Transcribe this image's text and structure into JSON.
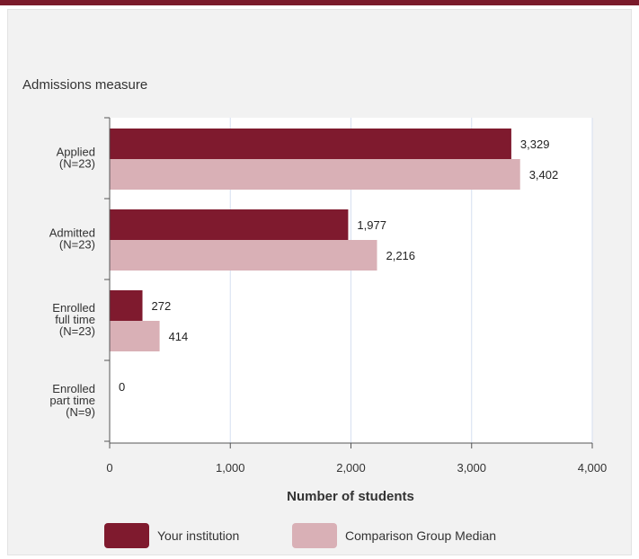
{
  "chart_data": {
    "type": "bar",
    "orientation": "horizontal",
    "ylabel": "Admissions measure",
    "xlabel": "Number of students",
    "xlim": [
      0,
      4000
    ],
    "xticks": [
      0,
      1000,
      2000,
      3000,
      4000
    ],
    "xtick_labels": [
      "0",
      "1,000",
      "2,000",
      "3,000",
      "4,000"
    ],
    "grid": true,
    "legend_position": "bottom",
    "categories": [
      [
        "Applied",
        "(N=23)"
      ],
      [
        "Admitted",
        "(N=23)"
      ],
      [
        "Enrolled",
        "full time",
        "(N=23)"
      ],
      [
        "Enrolled",
        "part time",
        "(N=9)"
      ]
    ],
    "series": [
      {
        "name": "Your institution",
        "color": "#7f1a2e",
        "values": [
          3329,
          1977,
          272,
          0
        ],
        "labels": [
          "3,329",
          "1,977",
          "272",
          "0"
        ]
      },
      {
        "name": "Comparison Group Median",
        "color": "#d9b0b6",
        "values": [
          3402,
          2216,
          414,
          null
        ],
        "labels": [
          "3,402",
          "2,216",
          "414",
          ""
        ]
      }
    ]
  },
  "colors": {
    "topbar": "#7a1a2a",
    "panel": "#f2f2f2",
    "plot_background": "#ffffff",
    "gridline": "#d6dff0",
    "axis": "#555555"
  }
}
